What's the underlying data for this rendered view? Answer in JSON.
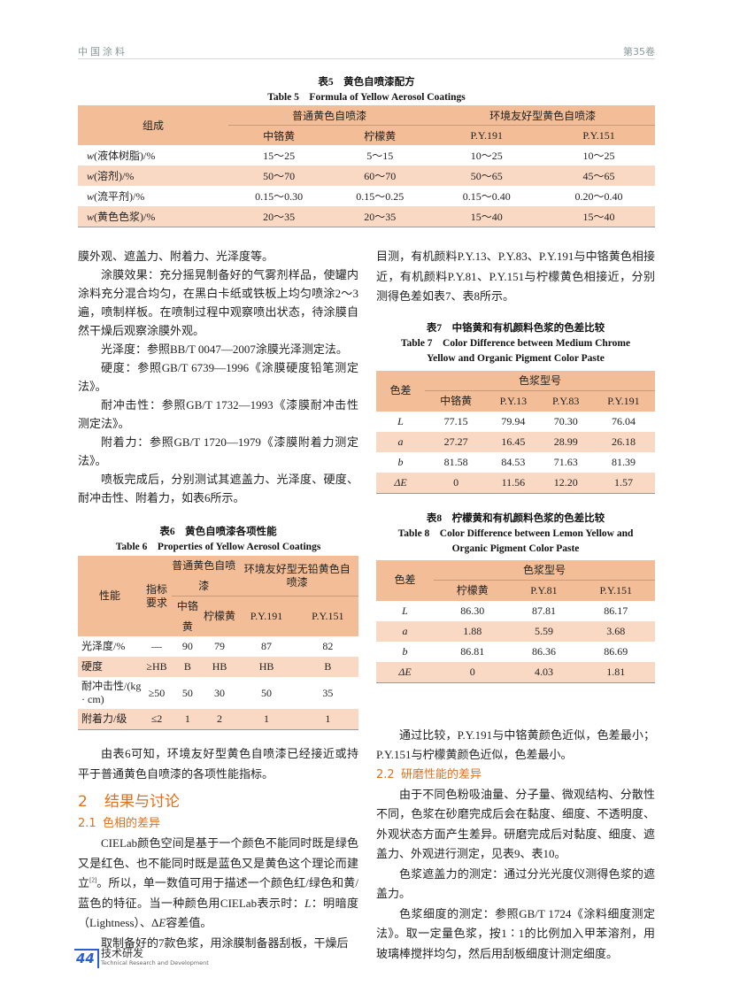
{
  "header": {
    "journal": "中国涂料",
    "volume": "第35卷"
  },
  "table5": {
    "title_cn": "表5　黄色自喷漆配方",
    "title_en": "Table 5　Formula of Yellow Aerosol Coatings",
    "col_main": "组成",
    "groups": [
      "普通黄色自喷漆",
      "环境友好型黄色自喷漆"
    ],
    "subcols": [
      "中铬黄",
      "柠檬黄",
      "P.Y.191",
      "P.Y.151"
    ],
    "rows": [
      {
        "var": "w",
        "label": "(液体树脂)/%",
        "values": [
          "15～25",
          "5～15",
          "10～25",
          "10～25"
        ]
      },
      {
        "var": "w",
        "label": "(溶剂)/%",
        "values": [
          "50～70",
          "60～70",
          "50～65",
          "45～65"
        ]
      },
      {
        "var": "w",
        "label": "(流平剂)/%",
        "values": [
          "0.15～0.30",
          "0.15～0.25",
          "0.15～0.40",
          "0.20～0.40"
        ]
      },
      {
        "var": "w",
        "label": "(黄色色浆)/%",
        "values": [
          "20～35",
          "20～35",
          "15～40",
          "15～40"
        ]
      }
    ]
  },
  "left": {
    "p1": "膜外观、遮盖力、附着力、光泽度等。",
    "p2": "涂膜效果：充分摇晃制备好的气雾剂样品，使罐内涂料充分混合均匀，在黑白卡纸或铁板上均匀喷涂2～3遍，喷制样板。在喷制过程中观察喷出状态，待涂膜自然干燥后观察涂膜外观。",
    "p3": "光泽度：参照BB/T 0047—2007涂膜光泽测定法。",
    "p4": "硬度：参照GB/T 6739—1996《涂膜硬度铅笔测定法》。",
    "p5": "耐冲击性：参照GB/T 1732—1993《漆膜耐冲击性测定法》。",
    "p6": "附着力：参照GB/T 1720—1979《漆膜附着力测定法》。",
    "p7": "喷板完成后，分别测试其遮盖力、光泽度、硬度、耐冲击性、附着力，如表6所示。",
    "p8": "由表6可知，环境友好型黄色自喷漆已经接近或持平于普通黄色自喷漆的各项性能指标。",
    "h2_num": "2",
    "h2": "结果与讨论",
    "h21_num": "2.1",
    "h21": "色相的差异",
    "p9a": "CIELab颜色空间是基于一个颜色不能同时既是绿色又是红色、也不能同时既是蓝色又是黄色这个理论而建立",
    "p9ref": "[2]",
    "p9b": "。所以，单一数值可用于描述一个颜色红/绿色和黄/蓝色的特征。当一种颜色用CIELab表示时：",
    "p9L": "L",
    "p9c": "：明暗度（Lightness）、Δ",
    "p9E": "E",
    "p9d": "容差值。",
    "p10": "取制备好的7款色浆，用涂膜制备器刮板，干燥后"
  },
  "table6": {
    "title_cn": "表6　黄色自喷漆各项性能",
    "title_en": "Table 6　Properties of Yellow Aerosol Coatings",
    "col_prop": "性能",
    "col_req": "指标要求",
    "groups": [
      "普通黄色自喷漆",
      "环境友好型无铅黄色自喷漆"
    ],
    "subcols": [
      "中铬黄",
      "柠檬黄",
      "P.Y.191",
      "P.Y.151"
    ],
    "rows": [
      {
        "label": "光泽度/%",
        "req": "—",
        "values": [
          "90",
          "79",
          "87",
          "82"
        ]
      },
      {
        "label": "硬度",
        "req": "≥HB",
        "values": [
          "B",
          "HB",
          "HB",
          "B"
        ]
      },
      {
        "label": "耐冲击性/(kg · cm)",
        "req": "≥50",
        "values": [
          "50",
          "30",
          "50",
          "35"
        ]
      },
      {
        "label": "附着力/级",
        "req": "≤2",
        "values": [
          "1",
          "2",
          "1",
          "1"
        ]
      }
    ]
  },
  "right": {
    "p1": "目测，有机颜料P.Y.13、P.Y.83、P.Y.191与中铬黄色相接近，有机颜料P.Y.81、P.Y.151与柠檬黄色相接近，分别测得色差如表7、表8所示。",
    "p2": "通过比较，P.Y.191与中铬黄颜色近似，色差最小；P.Y.151与柠檬黄颜色近似，色差最小。",
    "h22_num": "2.2",
    "h22": "研磨性能的差异",
    "p3": "由于不同色粉吸油量、分子量、微观结构、分散性不同，色浆在砂磨完成后会在黏度、细度、不透明度、外观状态方面产生差异。研磨完成后对黏度、细度、遮盖力、外观进行测定，见表9、表10。",
    "p4": "色浆遮盖力的测定：通过分光光度仪测得色浆的遮盖力。",
    "p5": "色浆细度的测定：参照GB/T 1724《涂料细度测定法》。取一定量色浆，按1∶1的比例加入甲苯溶剂，用玻璃棒搅拌均匀，然后用刮板细度计测定细度。"
  },
  "table7": {
    "title_cn": "表7　中铬黄和有机颜料色浆的色差比较",
    "title_en1": "Table 7　Color Difference between Medium Chrome",
    "title_en2": "Yellow and Organic Pigment Color Paste",
    "col_main": "色差",
    "group": "色浆型号",
    "subcols": [
      "中铬黄",
      "P.Y.13",
      "P.Y.83",
      "P.Y.191"
    ],
    "rows": [
      {
        "label": "L",
        "values": [
          "77.15",
          "79.94",
          "70.30",
          "76.04"
        ]
      },
      {
        "label": "a",
        "values": [
          "27.27",
          "16.45",
          "28.99",
          "26.18"
        ]
      },
      {
        "label": "b",
        "values": [
          "81.58",
          "84.53",
          "71.63",
          "81.39"
        ]
      },
      {
        "label": "ΔE",
        "values": [
          "0",
          "11.56",
          "12.20",
          "1.57"
        ]
      }
    ]
  },
  "table8": {
    "title_cn": "表8　柠檬黄和有机颜料色浆的色差比较",
    "title_en1": "Table 8　Color Difference between Lemon Yellow and",
    "title_en2": "Organic Pigment Color Paste",
    "col_main": "色差",
    "group": "色浆型号",
    "subcols": [
      "柠檬黄",
      "P.Y.81",
      "P.Y.151"
    ],
    "rows": [
      {
        "label": "L",
        "values": [
          "86.30",
          "87.81",
          "86.17"
        ]
      },
      {
        "label": "a",
        "values": [
          "1.88",
          "5.59",
          "3.68"
        ]
      },
      {
        "label": "b",
        "values": [
          "86.81",
          "86.36",
          "86.69"
        ]
      },
      {
        "label": "ΔE",
        "values": [
          "0",
          "4.03",
          "1.81"
        ]
      }
    ]
  },
  "footer": {
    "page": "44",
    "section_cn": "技术研发",
    "section_en": "Technical Research and Development"
  },
  "colors": {
    "accent": "#e0701c",
    "table_header": "#f3be97",
    "table_alt": "#fad9c4",
    "footer_blue": "#2a5fd0"
  }
}
